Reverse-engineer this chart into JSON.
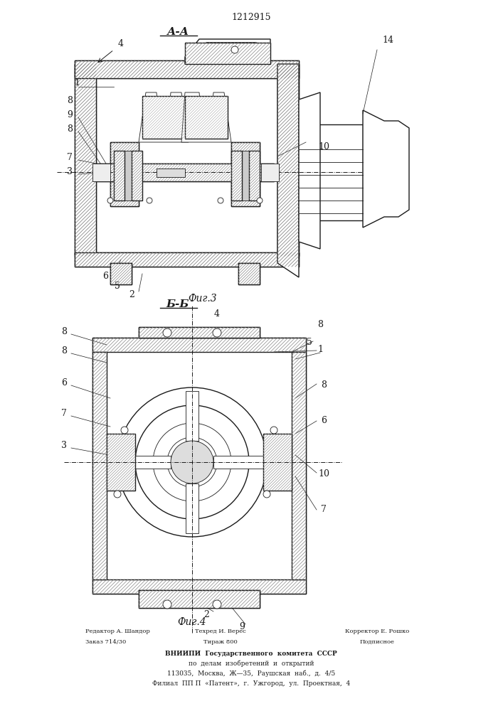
{
  "patent_number": "1212915",
  "title_fig3": "А-А",
  "title_fig4": "Б-Б",
  "caption_fig3": "Фиг.3",
  "caption_fig4": "Фиг.4",
  "footer_line1_left": "Редактор А. Шандор",
  "footer_line1_mid": "Техред И. Верес",
  "footer_line1_right": "Корректор Е. Рошко",
  "footer_line2_left": "Заказ 714/30",
  "footer_line2_mid": "Тираж 800",
  "footer_line2_right": "Подписное",
  "footer_org1": "ВНИИПИ  Государственного  комитета  СССР",
  "footer_org2": "по  делам  изобретений  и  открытий",
  "footer_addr1": "113035,  Москва,  Ж—35,  Раушская  наб.,  д.  4/5",
  "footer_addr2": "Филиал  ПП П  «Патент»,  г.  Ужгород,  ул.  Проектная,  4",
  "bg_color": "#ffffff",
  "line_color": "#1a1a1a",
  "hatch_color": "#333333",
  "fig_width": 7.07,
  "fig_height": 10.0
}
